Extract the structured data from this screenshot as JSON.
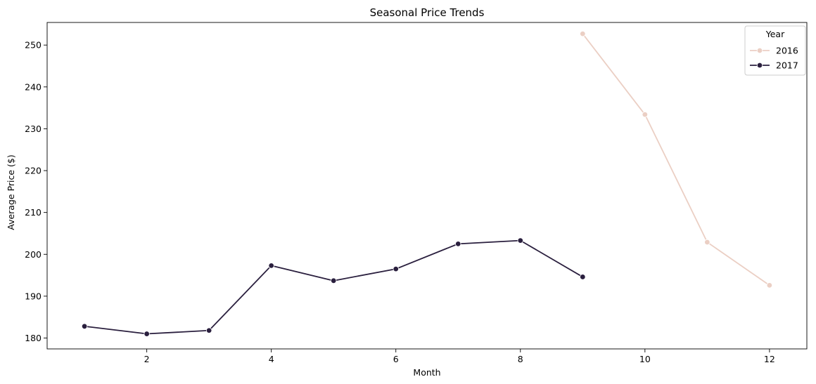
{
  "chart_data": {
    "type": "line",
    "title": "Seasonal Price Trends",
    "xlabel": "Month",
    "ylabel": "Average Price ($)",
    "xlim": [
      0.4,
      12.6
    ],
    "ylim": [
      177.4,
      255.4
    ],
    "xticks": [
      2,
      4,
      6,
      8,
      10,
      12
    ],
    "yticks": [
      180,
      190,
      200,
      210,
      220,
      230,
      240,
      250
    ],
    "grid": false,
    "legend": {
      "title": "Year",
      "position": "top-right"
    },
    "series": [
      {
        "name": "2016",
        "color": "#ebcfc4",
        "x": [
          9,
          10,
          11,
          12
        ],
        "y": [
          252.7,
          233.4,
          202.9,
          192.6
        ]
      },
      {
        "name": "2017",
        "color": "#2a1f3e",
        "x": [
          1,
          2,
          3,
          4,
          5,
          6,
          7,
          8,
          9
        ],
        "y": [
          182.8,
          181.0,
          181.8,
          197.3,
          193.7,
          196.5,
          202.5,
          203.3,
          194.6
        ]
      }
    ]
  }
}
